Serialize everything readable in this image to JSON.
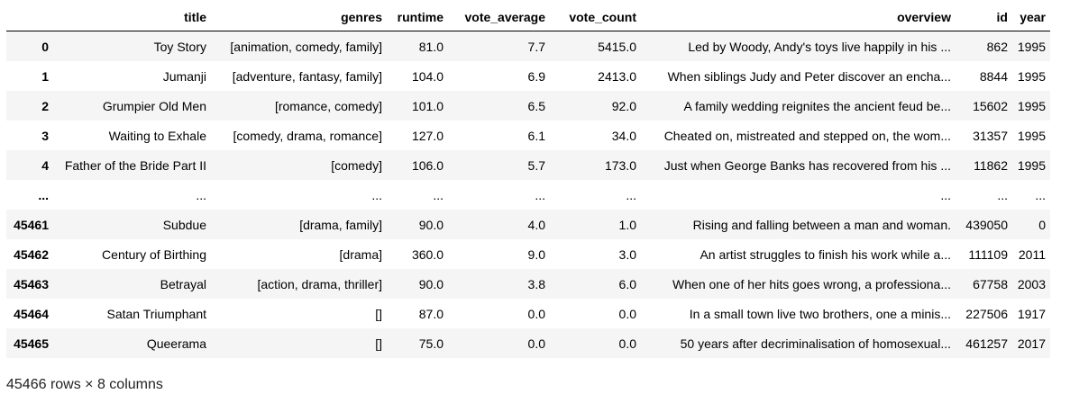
{
  "dataframe": {
    "columns": [
      "",
      "title",
      "genres",
      "runtime",
      "vote_average",
      "vote_count",
      "overview",
      "id",
      "year"
    ],
    "rows": [
      {
        "index": "0",
        "title": "Toy Story",
        "genres": "[animation, comedy, family]",
        "runtime": "81.0",
        "vote_average": "7.7",
        "vote_count": "5415.0",
        "overview": "Led by Woody, Andy's toys live happily in his ...",
        "id": "862",
        "year": "1995"
      },
      {
        "index": "1",
        "title": "Jumanji",
        "genres": "[adventure, fantasy, family]",
        "runtime": "104.0",
        "vote_average": "6.9",
        "vote_count": "2413.0",
        "overview": "When siblings Judy and Peter discover an encha...",
        "id": "8844",
        "year": "1995"
      },
      {
        "index": "2",
        "title": "Grumpier Old Men",
        "genres": "[romance, comedy]",
        "runtime": "101.0",
        "vote_average": "6.5",
        "vote_count": "92.0",
        "overview": "A family wedding reignites the ancient feud be...",
        "id": "15602",
        "year": "1995"
      },
      {
        "index": "3",
        "title": "Waiting to Exhale",
        "genres": "[comedy, drama, romance]",
        "runtime": "127.0",
        "vote_average": "6.1",
        "vote_count": "34.0",
        "overview": "Cheated on, mistreated and stepped on, the wom...",
        "id": "31357",
        "year": "1995"
      },
      {
        "index": "4",
        "title": "Father of the Bride Part II",
        "genres": "[comedy]",
        "runtime": "106.0",
        "vote_average": "5.7",
        "vote_count": "173.0",
        "overview": "Just when George Banks has recovered from his ...",
        "id": "11862",
        "year": "1995"
      },
      {
        "index": "...",
        "title": "...",
        "genres": "...",
        "runtime": "...",
        "vote_average": "...",
        "vote_count": "...",
        "overview": "...",
        "id": "...",
        "year": "..."
      },
      {
        "index": "45461",
        "title": "Subdue",
        "genres": "[drama, family]",
        "runtime": "90.0",
        "vote_average": "4.0",
        "vote_count": "1.0",
        "overview": "Rising and falling between a man and woman.",
        "id": "439050",
        "year": "0"
      },
      {
        "index": "45462",
        "title": "Century of Birthing",
        "genres": "[drama]",
        "runtime": "360.0",
        "vote_average": "9.0",
        "vote_count": "3.0",
        "overview": "An artist struggles to finish his work while a...",
        "id": "111109",
        "year": "2011"
      },
      {
        "index": "45463",
        "title": "Betrayal",
        "genres": "[action, drama, thriller]",
        "runtime": "90.0",
        "vote_average": "3.8",
        "vote_count": "6.0",
        "overview": "When one of her hits goes wrong, a professiona...",
        "id": "67758",
        "year": "2003"
      },
      {
        "index": "45464",
        "title": "Satan Triumphant",
        "genres": "[]",
        "runtime": "87.0",
        "vote_average": "0.0",
        "vote_count": "0.0",
        "overview": "In a small town live two brothers, one a minis...",
        "id": "227506",
        "year": "1917"
      },
      {
        "index": "45465",
        "title": "Queerama",
        "genres": "[]",
        "runtime": "75.0",
        "vote_average": "0.0",
        "vote_count": "0.0",
        "overview": "50 years after decriminalisation of homosexual...",
        "id": "461257",
        "year": "2017"
      }
    ],
    "shape_text": "45466 rows × 8 columns"
  }
}
